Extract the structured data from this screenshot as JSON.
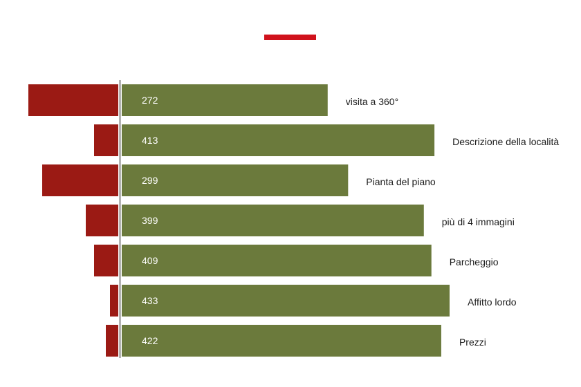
{
  "chart_data": {
    "type": "bar",
    "orientation": "horizontal-diverging",
    "categories": [
      "visita a 360°",
      "Descrizione della località",
      "Pianta del piano",
      "più di 4 immagini",
      "Parcheggio",
      "Affitto lordo",
      "Prezzi"
    ],
    "series": [
      {
        "values": [
          272,
          413,
          299,
          399,
          409,
          433,
          422
        ],
        "color": "#6b7a3c"
      },
      {
        "values": [
          130,
          35,
          110,
          47,
          35,
          12,
          18
        ],
        "color": "#9b1a14"
      }
    ],
    "grid": false,
    "legend": "top-center",
    "legend_swatch_color": "#d0121c"
  }
}
